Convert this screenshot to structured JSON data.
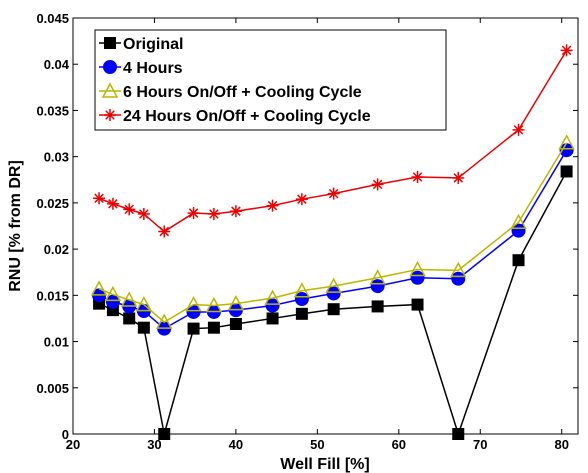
{
  "chart_data": {
    "type": "line",
    "xlabel": "Well Fill [%]",
    "ylabel": "RNU [% from DR]",
    "xlim": [
      20,
      82
    ],
    "ylim": [
      0,
      0.045
    ],
    "xticks": [
      20,
      30,
      40,
      50,
      60,
      70,
      80
    ],
    "yticks": [
      0,
      0.005,
      0.01,
      0.015,
      0.02,
      0.025,
      0.03,
      0.035,
      0.04,
      0.045
    ],
    "ytick_labels": [
      "0",
      "0.005",
      "0.01",
      "0.015",
      "0.02",
      "0.025",
      "0.03",
      "0.035",
      "0.04",
      "0.045"
    ],
    "legend_position": "top-left",
    "grid": false,
    "series": [
      {
        "name": "Original",
        "color": "#000000",
        "marker": "square",
        "x": [
          23.2,
          24.9,
          26.9,
          28.7,
          31.2,
          34.8,
          37.3,
          40.0,
          44.5,
          48.1,
          52.0,
          57.4,
          62.3,
          67.3,
          74.7,
          80.6
        ],
        "y": [
          0.0141,
          0.0134,
          0.0125,
          0.0115,
          0.0,
          0.0114,
          0.0115,
          0.0119,
          0.0125,
          0.013,
          0.0135,
          0.0138,
          0.014,
          0.0,
          0.0188,
          0.0284
        ]
      },
      {
        "name": "4 Hours",
        "color": "#0000ff",
        "marker": "circle",
        "x": [
          23.2,
          24.9,
          26.9,
          28.7,
          31.2,
          34.8,
          37.3,
          40.0,
          44.5,
          48.1,
          52.0,
          57.4,
          62.3,
          67.3,
          74.7,
          80.6
        ],
        "y": [
          0.015,
          0.0143,
          0.0138,
          0.0133,
          0.0114,
          0.0132,
          0.0132,
          0.0134,
          0.0139,
          0.0146,
          0.0152,
          0.016,
          0.0169,
          0.0168,
          0.022,
          0.0307
        ]
      },
      {
        "name": "6   Hours On/Off + Cooling Cycle",
        "color": "#b8b800",
        "marker": "triangle",
        "x": [
          23.2,
          24.9,
          26.9,
          28.7,
          31.2,
          34.8,
          37.3,
          40.0,
          44.5,
          48.1,
          52.0,
          57.4,
          62.3,
          67.3,
          74.7,
          80.6
        ],
        "y": [
          0.0157,
          0.0151,
          0.0145,
          0.014,
          0.0121,
          0.014,
          0.0139,
          0.0141,
          0.0147,
          0.0155,
          0.016,
          0.0169,
          0.0178,
          0.0177,
          0.0229,
          0.0315
        ]
      },
      {
        "name": "24 Hours On/Off + Cooling Cycle",
        "color": "#ee0000",
        "marker": "asterisk",
        "x": [
          23.2,
          24.9,
          26.9,
          28.7,
          31.2,
          34.8,
          37.3,
          40.0,
          44.5,
          48.1,
          52.0,
          57.4,
          62.3,
          67.3,
          74.7,
          80.6
        ],
        "y": [
          0.0255,
          0.0249,
          0.0243,
          0.0238,
          0.0219,
          0.0239,
          0.0238,
          0.0241,
          0.0247,
          0.0254,
          0.026,
          0.027,
          0.0278,
          0.0277,
          0.0329,
          0.0415
        ]
      }
    ]
  }
}
